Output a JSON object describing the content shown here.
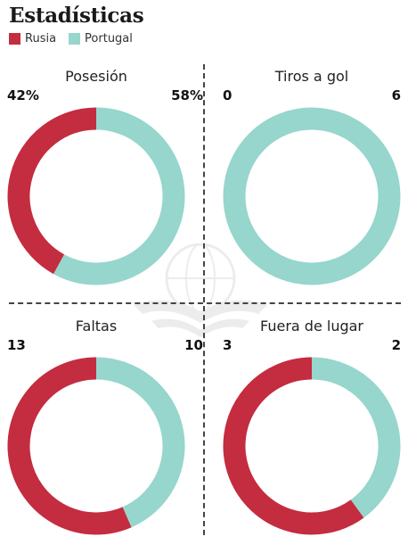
{
  "title": "Estadísticas",
  "legend": [
    {
      "label": "Rusia",
      "color": "#c42c3f"
    },
    {
      "label": "Portugal",
      "color": "#96d6cc"
    }
  ],
  "chart_data": [
    {
      "type": "pie",
      "title": "Posesión",
      "series": [
        {
          "name": "Rusia",
          "value": 42,
          "label": "42%"
        },
        {
          "name": "Portugal",
          "value": 58,
          "label": "58%"
        }
      ]
    },
    {
      "type": "pie",
      "title": "Tiros a gol",
      "series": [
        {
          "name": "Rusia",
          "value": 0,
          "label": "0"
        },
        {
          "name": "Portugal",
          "value": 6,
          "label": "6"
        }
      ]
    },
    {
      "type": "pie",
      "title": "Faltas",
      "series": [
        {
          "name": "Rusia",
          "value": 13,
          "label": "13"
        },
        {
          "name": "Portugal",
          "value": 10,
          "label": "10"
        }
      ]
    },
    {
      "type": "pie",
      "title": "Fuera de lugar",
      "series": [
        {
          "name": "Rusia",
          "value": 3,
          "label": "3"
        },
        {
          "name": "Portugal",
          "value": 2,
          "label": "2"
        }
      ]
    }
  ]
}
